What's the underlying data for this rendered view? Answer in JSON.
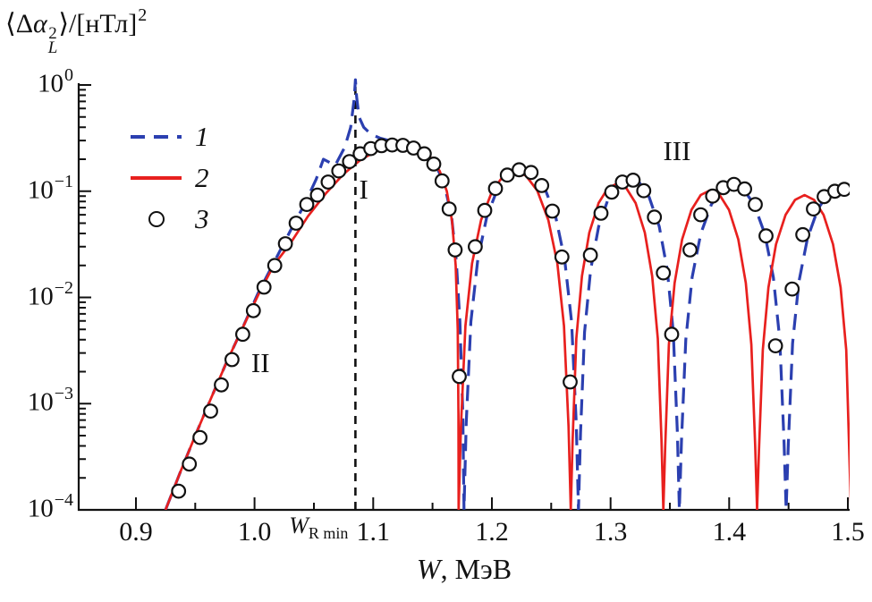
{
  "chart_data": {
    "type": "line",
    "title": "",
    "ylabel_parts": {
      "open": "⟨Δ",
      "alpha": "α",
      "sup": "2",
      "sub": "L",
      "close": "⟩/[нТл]",
      "sup2": "2"
    },
    "xlabel_parts": {
      "var": "W",
      "rest": ", МэВ"
    },
    "xlim": [
      0.8518,
      1.5015
    ],
    "ylim": [
      0.0001,
      1.0
    ],
    "ylog": true,
    "grid": false,
    "x_major_ticks": [
      0.9,
      1.0,
      1.1,
      1.2,
      1.3,
      1.4,
      1.5
    ],
    "x_tick_labels": [
      "0.9",
      "1.0",
      "1.1",
      "1.2",
      "1.3",
      "1.4",
      "1.5"
    ],
    "y_ticks": [
      {
        "base": "10",
        "exp": "0",
        "value": 1.0
      },
      {
        "base": "10",
        "exp": "−1",
        "value": 0.1
      },
      {
        "base": "10",
        "exp": "−2",
        "value": 0.01
      },
      {
        "base": "10",
        "exp": "−3",
        "value": 0.001
      },
      {
        "base": "10",
        "exp": "−4",
        "value": 0.0001
      }
    ],
    "vline": {
      "x": 1.085,
      "label_var": "W",
      "label_sub": "R min"
    },
    "regions": [
      {
        "text": "I",
        "x": 1.092,
        "y": 0.1
      },
      {
        "text": "II",
        "x": 1.005,
        "y": 0.0023
      },
      {
        "text": "III",
        "x": 1.356,
        "y": 0.23
      }
    ],
    "legend": {
      "position": "upper-left-inside",
      "items": [
        {
          "label": "1",
          "marker": "dashed-line",
          "color": "#2b3fb0"
        },
        {
          "label": "2",
          "marker": "solid-line",
          "color": "#e8201e"
        },
        {
          "label": "3",
          "marker": "open-circle",
          "color": "#111111"
        }
      ]
    },
    "series": [
      {
        "name": "1",
        "style": "dashed",
        "color": "#2b3fb0",
        "points": [
          [
            0.925,
            0.0001
          ],
          [
            0.937,
            0.00022
          ],
          [
            0.95,
            0.0005
          ],
          [
            0.963,
            0.0011
          ],
          [
            0.976,
            0.0024
          ],
          [
            0.99,
            0.0052
          ],
          [
            1.003,
            0.011
          ],
          [
            1.016,
            0.021
          ],
          [
            1.03,
            0.042
          ],
          [
            1.042,
            0.075
          ],
          [
            1.052,
            0.13
          ],
          [
            1.058,
            0.2
          ],
          [
            1.068,
            0.175
          ],
          [
            1.076,
            0.26
          ],
          [
            1.081,
            0.4
          ],
          [
            1.084,
            0.75
          ],
          [
            1.085,
            1.12
          ],
          [
            1.086,
            0.78
          ],
          [
            1.088,
            0.5
          ],
          [
            1.092,
            0.4
          ],
          [
            1.098,
            0.345
          ],
          [
            1.106,
            0.315
          ],
          [
            1.116,
            0.295
          ],
          [
            1.126,
            0.283
          ],
          [
            1.136,
            0.262
          ],
          [
            1.145,
            0.225
          ],
          [
            1.153,
            0.175
          ],
          [
            1.16,
            0.115
          ],
          [
            1.166,
            0.058
          ],
          [
            1.17,
            0.022
          ],
          [
            1.173,
            0.006
          ],
          [
            1.1755,
            0.0008
          ],
          [
            1.1765,
            0.0001
          ],
          [
            1.1784,
            0.00066
          ],
          [
            1.1823,
            0.0059
          ],
          [
            1.1881,
            0.0226
          ],
          [
            1.1958,
            0.058
          ],
          [
            1.2055,
            0.11
          ],
          [
            1.2151,
            0.152
          ],
          [
            1.2248,
            0.168
          ],
          [
            1.2344,
            0.152
          ],
          [
            1.2441,
            0.11
          ],
          [
            1.2537,
            0.058
          ],
          [
            1.2614,
            0.0226
          ],
          [
            1.2672,
            0.0059
          ],
          [
            1.2711,
            0.00066
          ],
          [
            1.273,
            0.0001
          ],
          [
            1.2747,
            0.00053
          ],
          [
            1.2781,
            0.0047
          ],
          [
            1.2832,
            0.0182
          ],
          [
            1.29,
            0.0466
          ],
          [
            1.2985,
            0.088
          ],
          [
            1.307,
            0.122
          ],
          [
            1.3155,
            0.135
          ],
          [
            1.324,
            0.122
          ],
          [
            1.3325,
            0.088
          ],
          [
            1.341,
            0.0466
          ],
          [
            1.3478,
            0.0182
          ],
          [
            1.3529,
            0.0047
          ],
          [
            1.3563,
            0.00053
          ],
          [
            1.358,
            0.0001
          ],
          [
            1.3598,
            0.00045
          ],
          [
            1.3634,
            0.004
          ],
          [
            1.3688,
            0.0155
          ],
          [
            1.376,
            0.0397
          ],
          [
            1.385,
            0.075
          ],
          [
            1.394,
            0.104
          ],
          [
            1.403,
            0.115
          ],
          [
            1.412,
            0.104
          ],
          [
            1.421,
            0.075
          ],
          [
            1.43,
            0.0397
          ],
          [
            1.4372,
            0.0155
          ],
          [
            1.4426,
            0.004
          ],
          [
            1.4462,
            0.00045
          ],
          [
            1.448,
            0.0001
          ],
          [
            1.4498,
            0.00041
          ],
          [
            1.4534,
            0.0037
          ],
          [
            1.4588,
            0.0141
          ],
          [
            1.466,
            0.0362
          ],
          [
            1.475,
            0.069
          ],
          [
            1.484,
            0.095
          ],
          [
            1.493,
            0.105
          ],
          [
            1.502,
            0.103
          ]
        ]
      },
      {
        "name": "2",
        "style": "solid",
        "color": "#e8201e",
        "points": [
          [
            0.925,
            0.0001
          ],
          [
            0.937,
            0.00022
          ],
          [
            0.95,
            0.0005
          ],
          [
            0.963,
            0.0011
          ],
          [
            0.976,
            0.0024
          ],
          [
            0.99,
            0.0052
          ],
          [
            1.003,
            0.0105
          ],
          [
            1.016,
            0.02
          ],
          [
            1.03,
            0.032
          ],
          [
            1.045,
            0.058
          ],
          [
            1.06,
            0.095
          ],
          [
            1.075,
            0.145
          ],
          [
            1.09,
            0.2
          ],
          [
            1.105,
            0.245
          ],
          [
            1.118,
            0.265
          ],
          [
            1.128,
            0.268
          ],
          [
            1.138,
            0.25
          ],
          [
            1.148,
            0.21
          ],
          [
            1.156,
            0.155
          ],
          [
            1.162,
            0.1
          ],
          [
            1.1665,
            0.052
          ],
          [
            1.1695,
            0.02
          ],
          [
            1.1712,
            0.005
          ],
          [
            1.1718,
            0.0008
          ],
          [
            1.172,
            0.0001
          ],
          [
            1.1739,
            0.00061
          ],
          [
            1.1777,
            0.0054
          ],
          [
            1.1833,
            0.0209
          ],
          [
            1.1909,
            0.0535
          ],
          [
            1.2004,
            0.1015
          ],
          [
            1.2098,
            0.14
          ],
          [
            1.2193,
            0.155
          ],
          [
            1.2287,
            0.14
          ],
          [
            1.2382,
            0.1015
          ],
          [
            1.2476,
            0.0535
          ],
          [
            1.2552,
            0.0209
          ],
          [
            1.2608,
            0.0054
          ],
          [
            1.2646,
            0.00061
          ],
          [
            1.2665,
            0.0001
          ],
          [
            1.2681,
            0.00046
          ],
          [
            1.2712,
            0.0041
          ],
          [
            1.2759,
            0.0159
          ],
          [
            1.2821,
            0.0407
          ],
          [
            1.2899,
            0.0773
          ],
          [
            1.2977,
            0.1068
          ],
          [
            1.3055,
            0.118
          ],
          [
            1.3133,
            0.1068
          ],
          [
            1.3211,
            0.0773
          ],
          [
            1.3289,
            0.0407
          ],
          [
            1.3351,
            0.0159
          ],
          [
            1.3398,
            0.0041
          ],
          [
            1.3429,
            0.00046
          ],
          [
            1.3445,
            0.0001
          ],
          [
            1.3461,
            0.0004
          ],
          [
            1.3492,
            0.0036
          ],
          [
            1.354,
            0.0137
          ],
          [
            1.3603,
            0.0352
          ],
          [
            1.3682,
            0.0668
          ],
          [
            1.3761,
            0.0923
          ],
          [
            1.384,
            0.102
          ],
          [
            1.3919,
            0.0923
          ],
          [
            1.3998,
            0.0668
          ],
          [
            1.4077,
            0.0352
          ],
          [
            1.414,
            0.0137
          ],
          [
            1.4187,
            0.0036
          ],
          [
            1.4219,
            0.0004
          ],
          [
            1.4235,
            0.0001
          ],
          [
            1.4251,
            0.00036
          ],
          [
            1.4283,
            0.0032
          ],
          [
            1.4331,
            0.0124
          ],
          [
            1.4395,
            0.0317
          ],
          [
            1.4475,
            0.06
          ],
          [
            1.4555,
            0.083
          ],
          [
            1.4635,
            0.092
          ],
          [
            1.4715,
            0.083
          ],
          [
            1.4795,
            0.06
          ],
          [
            1.4875,
            0.0317
          ],
          [
            1.4939,
            0.0124
          ],
          [
            1.4986,
            0.0032
          ],
          [
            1.5026,
            0.0001
          ]
        ]
      },
      {
        "name": "3",
        "style": "circles",
        "color": "#111111",
        "points": [
          [
            0.936,
            0.00015
          ],
          [
            0.945,
            0.00027
          ],
          [
            0.954,
            0.00048
          ],
          [
            0.963,
            0.00085
          ],
          [
            0.972,
            0.0015
          ],
          [
            0.981,
            0.0026
          ],
          [
            0.99,
            0.0045
          ],
          [
            0.999,
            0.0075
          ],
          [
            1.008,
            0.0125
          ],
          [
            1.017,
            0.02
          ],
          [
            1.026,
            0.032
          ],
          [
            1.035,
            0.05
          ],
          [
            1.044,
            0.075
          ],
          [
            1.053,
            0.092
          ],
          [
            1.062,
            0.122
          ],
          [
            1.071,
            0.155
          ],
          [
            1.08,
            0.19
          ],
          [
            1.089,
            0.225
          ],
          [
            1.098,
            0.252
          ],
          [
            1.107,
            0.268
          ],
          [
            1.116,
            0.272
          ],
          [
            1.125,
            0.27
          ],
          [
            1.134,
            0.255
          ],
          [
            1.143,
            0.225
          ],
          [
            1.151,
            0.18
          ],
          [
            1.158,
            0.125
          ],
          [
            1.164,
            0.068
          ],
          [
            1.169,
            0.028
          ],
          [
            1.1725,
            0.0018
          ],
          [
            1.186,
            0.03
          ],
          [
            1.194,
            0.066
          ],
          [
            1.203,
            0.106
          ],
          [
            1.213,
            0.142
          ],
          [
            1.223,
            0.159
          ],
          [
            1.233,
            0.15
          ],
          [
            1.242,
            0.113
          ],
          [
            1.251,
            0.065
          ],
          [
            1.259,
            0.024
          ],
          [
            1.266,
            0.0016
          ],
          [
            1.283,
            0.025
          ],
          [
            1.292,
            0.062
          ],
          [
            1.301,
            0.098
          ],
          [
            1.31,
            0.122
          ],
          [
            1.319,
            0.127
          ],
          [
            1.328,
            0.101
          ],
          [
            1.337,
            0.057
          ],
          [
            1.3445,
            0.017
          ],
          [
            1.3515,
            0.0045
          ],
          [
            1.367,
            0.028
          ],
          [
            1.376,
            0.06
          ],
          [
            1.386,
            0.09
          ],
          [
            1.395,
            0.108
          ],
          [
            1.404,
            0.116
          ],
          [
            1.413,
            0.105
          ],
          [
            1.422,
            0.075
          ],
          [
            1.431,
            0.038
          ],
          [
            1.439,
            0.0035
          ],
          [
            1.453,
            0.012
          ],
          [
            1.462,
            0.039
          ],
          [
            1.471,
            0.068
          ],
          [
            1.48,
            0.089
          ],
          [
            1.489,
            0.1
          ],
          [
            1.497,
            0.104
          ]
        ]
      }
    ]
  },
  "colors": {
    "axis": "#111111",
    "background": "#ffffff",
    "curve1": "#2b3fb0",
    "curve2": "#e8201e",
    "markers": "#111111"
  }
}
